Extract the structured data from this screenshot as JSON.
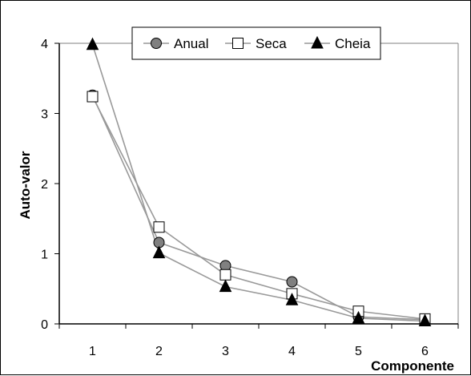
{
  "chart_data": {
    "type": "line",
    "x": [
      1,
      2,
      3,
      4,
      5,
      6
    ],
    "xlabel": "Componente",
    "ylabel": "Auto-valor",
    "ylim": [
      0,
      4
    ],
    "yticks": [
      0,
      1,
      2,
      3,
      4
    ],
    "xticks": [
      1,
      2,
      3,
      4,
      5,
      6
    ],
    "grid": false,
    "legend_position": "top",
    "series": [
      {
        "name": "Anual",
        "marker": "circle",
        "marker_color": "#808080",
        "line_color": "#999999",
        "values": [
          3.26,
          1.16,
          0.83,
          0.6,
          0.1,
          0.06
        ]
      },
      {
        "name": "Seca",
        "marker": "square",
        "marker_color": "#ffffff",
        "line_color": "#999999",
        "values": [
          3.24,
          1.38,
          0.7,
          0.43,
          0.18,
          0.07
        ]
      },
      {
        "name": "Cheia",
        "marker": "triangle",
        "marker_color": "#000000",
        "line_color": "#999999",
        "values": [
          3.98,
          1.01,
          0.53,
          0.34,
          0.08,
          0.04
        ]
      }
    ]
  }
}
